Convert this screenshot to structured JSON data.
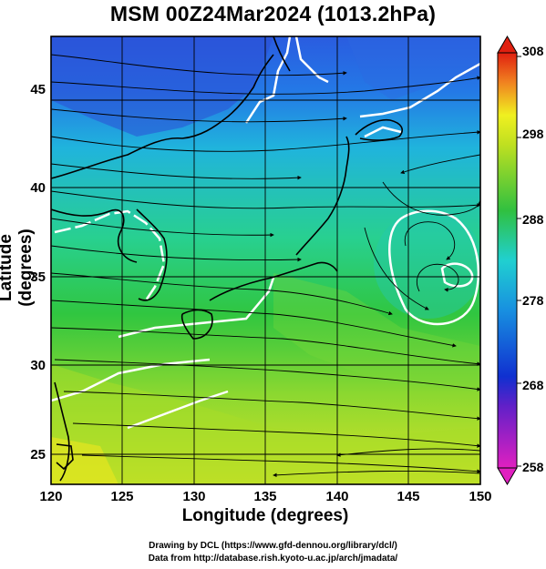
{
  "title": "MSM 00Z24Mar2024 (1013.2hPa)",
  "axes": {
    "xlabel": "Longitude (degrees)",
    "ylabel": "Latitude  (degrees)",
    "x_ticks": [
      "120",
      "125",
      "130",
      "135",
      "140",
      "145",
      "150"
    ],
    "y_ticks": [
      "25",
      "30",
      "35",
      "40",
      "45"
    ]
  },
  "colorbar": {
    "ticks": [
      "258",
      "268",
      "278",
      "288",
      "298",
      "308"
    ],
    "colors": [
      "#e020c0",
      "#1030d0",
      "#20c0e0",
      "#30c040",
      "#f0f020",
      "#e02010"
    ]
  },
  "credits": {
    "line1": "Drawing by DCL (https://www.gfd-dennou.org/library/dcl/)",
    "line2": "Data from http://database.rish.kyoto-u.ac.jp/arch/jmadata/"
  }
}
